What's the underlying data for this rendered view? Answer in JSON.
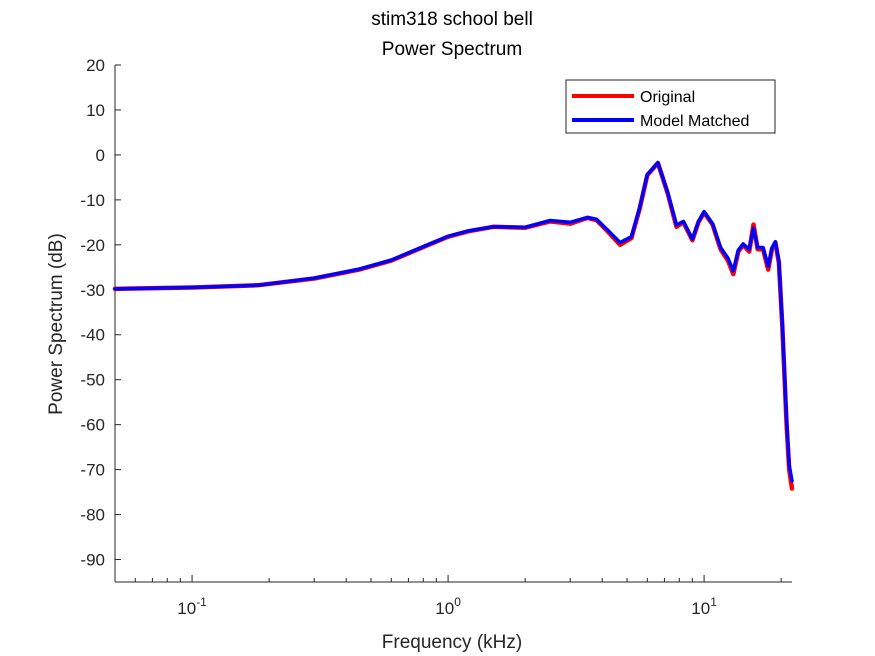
{
  "chart_data": {
    "type": "line",
    "title": [
      "stim318 school bell",
      "Power Spectrum"
    ],
    "xlabel": "Frequency (kHz)",
    "ylabel": "Power Spectrum (dB)",
    "xscale": "log",
    "xlim": [
      0.05,
      22.05
    ],
    "ylim": [
      -95,
      20
    ],
    "x_ticks": [
      {
        "value": 0.1,
        "base": "10",
        "exp": "-1"
      },
      {
        "value": 1,
        "base": "10",
        "exp": "0"
      },
      {
        "value": 10,
        "base": "10",
        "exp": "1"
      }
    ],
    "y_ticks": [
      20,
      10,
      0,
      -10,
      -20,
      -30,
      -40,
      -50,
      -60,
      -70,
      -80,
      -90
    ],
    "grid": false,
    "legend_position": "top-right",
    "series": [
      {
        "name": "Original",
        "color": "#ff0000",
        "x": [
          0.05,
          0.1,
          0.18,
          0.3,
          0.45,
          0.6,
          0.8,
          1.0,
          1.2,
          1.5,
          2.0,
          2.5,
          3.0,
          3.5,
          3.8,
          4.2,
          4.7,
          5.2,
          5.6,
          6.0,
          6.6,
          7.2,
          7.8,
          8.3,
          9.0,
          9.5,
          10.0,
          10.8,
          11.6,
          12.4,
          13.0,
          13.6,
          14.2,
          15.0,
          15.6,
          16.2,
          17.0,
          17.8,
          18.4,
          19.0,
          19.6,
          20.2,
          21.0,
          21.5,
          22.05
        ],
        "y": [
          -29.8,
          -29.5,
          -29.0,
          -27.5,
          -25.5,
          -23.5,
          -20.5,
          -18.2,
          -17.0,
          -16.0,
          -16.2,
          -14.8,
          -15.3,
          -14.0,
          -14.5,
          -17.0,
          -20.0,
          -18.5,
          -12.0,
          -4.5,
          -1.8,
          -8.5,
          -16.0,
          -15.0,
          -19.0,
          -15.0,
          -12.8,
          -15.5,
          -21.0,
          -23.5,
          -26.5,
          -21.5,
          -20.0,
          -21.5,
          -15.5,
          -21.0,
          -21.0,
          -25.5,
          -21.0,
          -19.5,
          -24.0,
          -38.0,
          -60.0,
          -70.0,
          -74.2
        ]
      },
      {
        "name": "Model Matched",
        "color": "#0000ff",
        "x": [
          0.05,
          0.1,
          0.18,
          0.3,
          0.45,
          0.6,
          0.8,
          1.0,
          1.2,
          1.5,
          2.0,
          2.5,
          3.0,
          3.5,
          3.8,
          4.2,
          4.7,
          5.2,
          5.6,
          6.0,
          6.6,
          7.2,
          7.8,
          8.3,
          9.0,
          9.5,
          10.0,
          10.8,
          11.6,
          12.4,
          13.0,
          13.6,
          14.2,
          15.0,
          15.6,
          16.2,
          17.0,
          17.8,
          18.4,
          19.0,
          19.6,
          20.2,
          21.0,
          21.5,
          22.05
        ],
        "y": [
          -29.8,
          -29.5,
          -29.0,
          -27.4,
          -25.4,
          -23.4,
          -20.4,
          -18.1,
          -16.9,
          -16.0,
          -16.1,
          -14.6,
          -15.0,
          -13.9,
          -14.3,
          -16.7,
          -19.5,
          -18.2,
          -11.8,
          -4.4,
          -1.7,
          -8.3,
          -15.6,
          -14.8,
          -18.7,
          -14.9,
          -12.6,
          -15.3,
          -20.6,
          -23.0,
          -25.8,
          -21.2,
          -19.8,
          -21.0,
          -16.3,
          -20.6,
          -20.6,
          -24.8,
          -20.7,
          -19.3,
          -23.6,
          -37.5,
          -59.0,
          -69.0,
          -72.5
        ]
      }
    ]
  }
}
